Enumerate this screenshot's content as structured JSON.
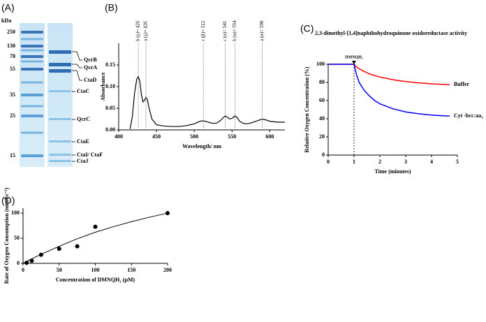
{
  "gel": {
    "panel_label": "(A)",
    "unit": "kDa",
    "markers": [
      "250",
      "130",
      "70",
      "55",
      "35",
      "25",
      "15"
    ],
    "proteins": [
      "QcrB",
      "QcrA",
      "CtaD",
      "CtaC",
      "QcrC",
      "CtaE",
      "CtaI/ CtaF",
      "CtaJ"
    ]
  },
  "chart_data": [
    {
      "type": "line",
      "panel_label": "(B)",
      "x_label": "Wavelength/ nm",
      "y_label": "Absorbance",
      "x": [
        415,
        418,
        421,
        424,
        426,
        428,
        430,
        432,
        434,
        436,
        438,
        440,
        444,
        450,
        460,
        470,
        480,
        490,
        500,
        505,
        510,
        515,
        520,
        525,
        530,
        535,
        538,
        541,
        544,
        547,
        550,
        554,
        557,
        560,
        565,
        570,
        575,
        580,
        585,
        590,
        595,
        600,
        605,
        610,
        615,
        620
      ],
      "values": [
        0.002,
        0.03,
        0.085,
        0.118,
        0.123,
        0.112,
        0.082,
        0.065,
        0.068,
        0.075,
        0.07,
        0.052,
        0.025,
        0.012,
        0.009,
        0.008,
        0.008,
        0.01,
        0.014,
        0.018,
        0.021,
        0.02,
        0.017,
        0.015,
        0.016,
        0.022,
        0.028,
        0.032,
        0.029,
        0.025,
        0.027,
        0.032,
        0.028,
        0.02,
        0.015,
        0.014,
        0.016,
        0.019,
        0.022,
        0.025,
        0.023,
        0.02,
        0.019,
        0.018,
        0.018,
        0.018
      ],
      "color": "#000000",
      "xlim": [
        400,
        620
      ],
      "ylim": [
        0,
        0.2
      ],
      "xticks": [
        400,
        450,
        500,
        550,
        600
      ],
      "yticks": [
        {
          "value": 0,
          "label": "0.00"
        },
        {
          "value": 0.05,
          "label": "0.05"
        },
        {
          "value": 0.1,
          "label": "0.10"
        },
        {
          "value": 0.15,
          "label": "0.15"
        }
      ],
      "annotations": [
        {
          "text": "b (γ)= 426",
          "x": 426
        },
        {
          "text": "a (γ)= 436",
          "x": 436
        },
        {
          "text": "c (β)= 512",
          "x": 512
        },
        {
          "text": "c (α)= 541",
          "x": 541
        },
        {
          "text": "b (α)= 554",
          "x": 554
        },
        {
          "text": "a (α)= 590",
          "x": 590
        }
      ]
    },
    {
      "type": "line",
      "panel_label": "(C)",
      "title": "2,3-dimethyl-[1,4]naphthohydroquinone oxidoreductase activity",
      "x_label": "Time (minutes)",
      "y_label": "Relative Oxygen Concentration (%)",
      "x": [
        0,
        0.5,
        1,
        1.1,
        1.2,
        1.4,
        1.6,
        1.8,
        2,
        2.5,
        3,
        3.5,
        4,
        4.5,
        4.7
      ],
      "series": [
        {
          "name": "Buffer",
          "color": "#ff0000",
          "values": [
            100,
            100,
            100,
            97,
            95,
            92,
            89.5,
            87.5,
            86,
            83,
            81,
            79.5,
            78.5,
            77.8,
            77.5
          ]
        },
        {
          "name": "Cyt -bcc:aa₃",
          "color": "#0000ff",
          "values": [
            100,
            100,
            100,
            88,
            80,
            71,
            65,
            60,
            56.5,
            51,
            47.5,
            45.5,
            44,
            43.2,
            43
          ]
        }
      ],
      "xlim": [
        0,
        5
      ],
      "ylim": [
        0,
        100
      ],
      "xticks": [
        0,
        1,
        2,
        3,
        4,
        5
      ],
      "yticks": [
        0,
        20,
        40,
        60,
        80,
        100
      ],
      "annotations": [
        {
          "text": "DMNQH₂",
          "x": 1
        }
      ]
    },
    {
      "type": "scatter",
      "panel_label": "(D)",
      "x_label": "Concentration of DMNQH₂ (µM)",
      "y_label": "Rate of Oxygen Consumption (nmol s⁻¹)",
      "x": [
        5,
        12,
        25,
        50,
        75,
        100,
        200
      ],
      "values": [
        1,
        5,
        17,
        29,
        34,
        73,
        100
      ],
      "color": "#000000",
      "fit": {
        "x": [
          0,
          10,
          25,
          50,
          75,
          100,
          125,
          150,
          175,
          200
        ],
        "values": [
          0,
          7.5,
          18,
          34,
          49,
          62,
          73,
          83,
          92,
          100
        ]
      },
      "xlim": [
        0,
        200
      ],
      "ylim": [
        0,
        110
      ],
      "xticks": [
        0,
        50,
        100,
        150,
        200
      ],
      "yticks": [
        0,
        50,
        100
      ]
    }
  ]
}
